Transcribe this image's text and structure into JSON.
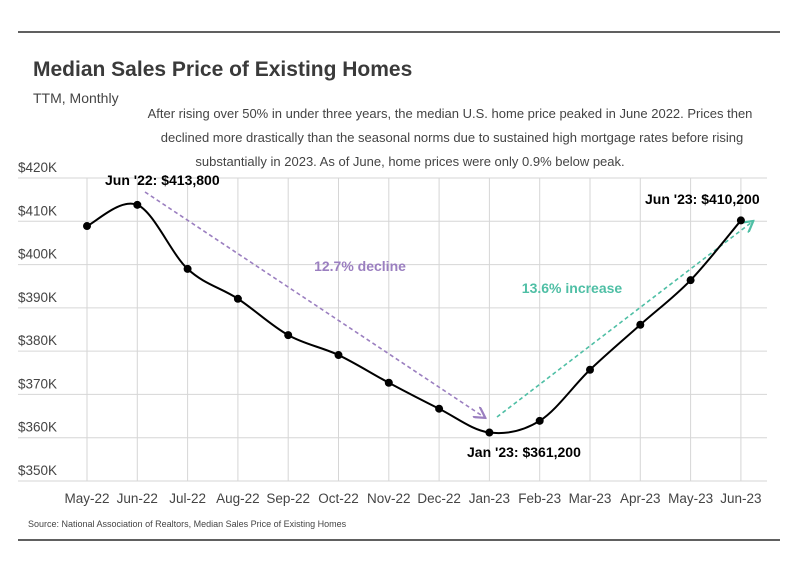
{
  "chart_data": {
    "type": "line",
    "title": "Median Sales Price of Existing Homes",
    "subtitle": "TTM, Monthly",
    "description": [
      "After rising over 50% in under three years, the median U.S. home price peaked in June 2022. Prices then",
      "declined more drastically than the seasonal norms due to sustained high mortgage rates before rising",
      "substantially in 2023. As of June, home prices were only 0.9% below peak."
    ],
    "categories": [
      "May-22",
      "Jun-22",
      "Jul-22",
      "Aug-22",
      "Sep-22",
      "Oct-22",
      "Nov-22",
      "Dec-22",
      "Jan-23",
      "Feb-23",
      "Mar-23",
      "Apr-23",
      "May-23",
      "Jun-23"
    ],
    "series": [
      {
        "name": "Median Sales Price",
        "values": [
          408900,
          413800,
          399000,
          392100,
          383700,
          379100,
          372700,
          366700,
          361200,
          363900,
          375700,
          386100,
          396400,
          410200
        ],
        "color": "#000000"
      }
    ],
    "ylim": [
      350000,
      420000
    ],
    "yticks": [
      350000,
      360000,
      370000,
      380000,
      390000,
      400000,
      410000,
      420000
    ],
    "ytick_labels": [
      "$350K",
      "$360K",
      "$370K",
      "$380K",
      "$390K",
      "$400K",
      "$410K",
      "$420K"
    ],
    "grid": true,
    "annotations": {
      "peak": {
        "text": "Jun '22: $413,800",
        "index": 1
      },
      "trough": {
        "text": "Jan '23: $361,200",
        "index": 8
      },
      "latest": {
        "text": "Jun '23: $410,200",
        "index": 13
      },
      "decline": {
        "text": "12.7% decline",
        "color": "#9b7fc0"
      },
      "increase": {
        "text": "13.6% increase",
        "color": "#4fbfa5"
      }
    },
    "source": "Source:  National Association of Realtors, Median Sales Price of Existing Homes"
  }
}
